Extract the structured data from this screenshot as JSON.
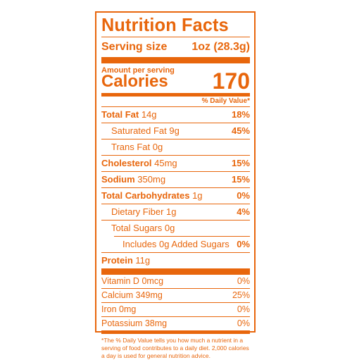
{
  "label": {
    "title": "Nutrition Facts",
    "serving_size_label": "Serving size",
    "serving_size_value": "1oz (28.3g)",
    "amount_per_serving": "Amount per serving",
    "calories_label": "Calories",
    "calories_value": "170",
    "daily_value_header": "% Daily Value*",
    "nutrients": [
      {
        "name": "Total Fat",
        "amount": "14g",
        "dv": "18%"
      },
      {
        "name": "Saturated Fat",
        "amount": "9g",
        "dv": "45%"
      },
      {
        "name": "Trans Fat",
        "amount": "0g",
        "dv": ""
      },
      {
        "name": "Cholesterol",
        "amount": "45mg",
        "dv": "15%"
      },
      {
        "name": "Sodium",
        "amount": "350mg",
        "dv": "15%"
      },
      {
        "name": "Total Carbohydrates",
        "amount": "1g",
        "dv": "0%"
      },
      {
        "name": "Dietary Fiber",
        "amount": "1g",
        "dv": "4%"
      },
      {
        "name": "Total Sugars",
        "amount": "0g",
        "dv": ""
      },
      {
        "name": "Includes",
        "amount": "0g Added Sugars",
        "dv": "0%"
      },
      {
        "name": "Protein",
        "amount": "11g",
        "dv": ""
      }
    ],
    "vitamins": [
      {
        "name": "Vitamin D",
        "amount": "0mcg",
        "dv": "0%"
      },
      {
        "name": "Calcium",
        "amount": "349mg",
        "dv": "25%"
      },
      {
        "name": "Iron",
        "amount": "0mg",
        "dv": "0%"
      },
      {
        "name": "Potassium",
        "amount": "38mg",
        "dv": "0%"
      }
    ],
    "footnote": "*The % Daily Value tells you how much a nutrient in a serving of food contributes to a daily diet. 2,000 calories a day is used for general nutrition advice."
  },
  "colors": {
    "accent": "#e8660c"
  }
}
